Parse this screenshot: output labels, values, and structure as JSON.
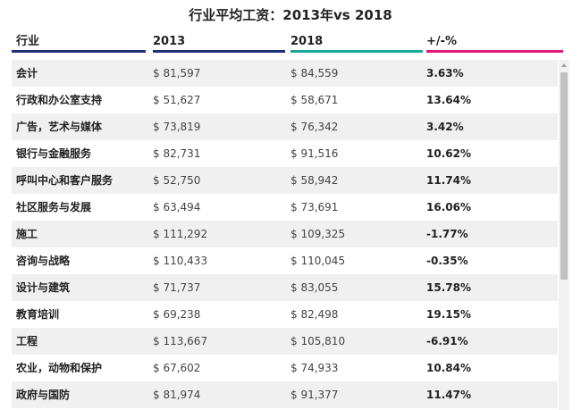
{
  "title": "行业平均工资：2013年vs 2018",
  "columns": [
    {
      "label": "行业",
      "color": "#1f2f7a"
    },
    {
      "label": "2013",
      "color": "#1f2f7a"
    },
    {
      "label": "2018",
      "color": "#19a89a"
    },
    {
      "label": "+/-%",
      "color": "#e0197a"
    }
  ],
  "rows": [
    {
      "industry": "会计",
      "y2013": "$ 81,597",
      "y2018": "$ 84,559",
      "change": "3.63%"
    },
    {
      "industry": "行政和办公室支持",
      "y2013": "$ 51,627",
      "y2018": "$ 58,671",
      "change": "13.64%"
    },
    {
      "industry": "广告，艺术与媒体",
      "y2013": "$ 73,819",
      "y2018": "$ 76,342",
      "change": "3.42%"
    },
    {
      "industry": "银行与金融服务",
      "y2013": "$ 82,731",
      "y2018": "$ 91,516",
      "change": "10.62%"
    },
    {
      "industry": "呼叫中心和客户服务",
      "y2013": "$ 52,750",
      "y2018": "$ 58,942",
      "change": "11.74%"
    },
    {
      "industry": "社区服务与发展",
      "y2013": "$ 63,494",
      "y2018": "$ 73,691",
      "change": "16.06%"
    },
    {
      "industry": "施工",
      "y2013": "$ 111,292",
      "y2018": "$ 109,325",
      "change": "-1.77%"
    },
    {
      "industry": "咨询与战略",
      "y2013": "$ 110,433",
      "y2018": "$ 110,045",
      "change": "-0.35%"
    },
    {
      "industry": "设计与建筑",
      "y2013": "$ 71,737",
      "y2018": "$ 83,055",
      "change": "15.78%"
    },
    {
      "industry": "教育培训",
      "y2013": "$ 69,238",
      "y2018": "$ 82,498",
      "change": "19.15%"
    },
    {
      "industry": "工程",
      "y2013": "$ 113,667",
      "y2018": "$ 105,810",
      "change": "-6.91%"
    },
    {
      "industry": "农业，动物和保护",
      "y2013": "$ 67,602",
      "y2018": "$ 74,933",
      "change": "10.84%"
    },
    {
      "industry": "政府与国防",
      "y2013": "$ 81,974",
      "y2018": "$ 91,377",
      "change": "11.47%"
    }
  ],
  "scrollbar": {
    "up_icon": "triangle-up-icon",
    "position_fraction": 0
  }
}
